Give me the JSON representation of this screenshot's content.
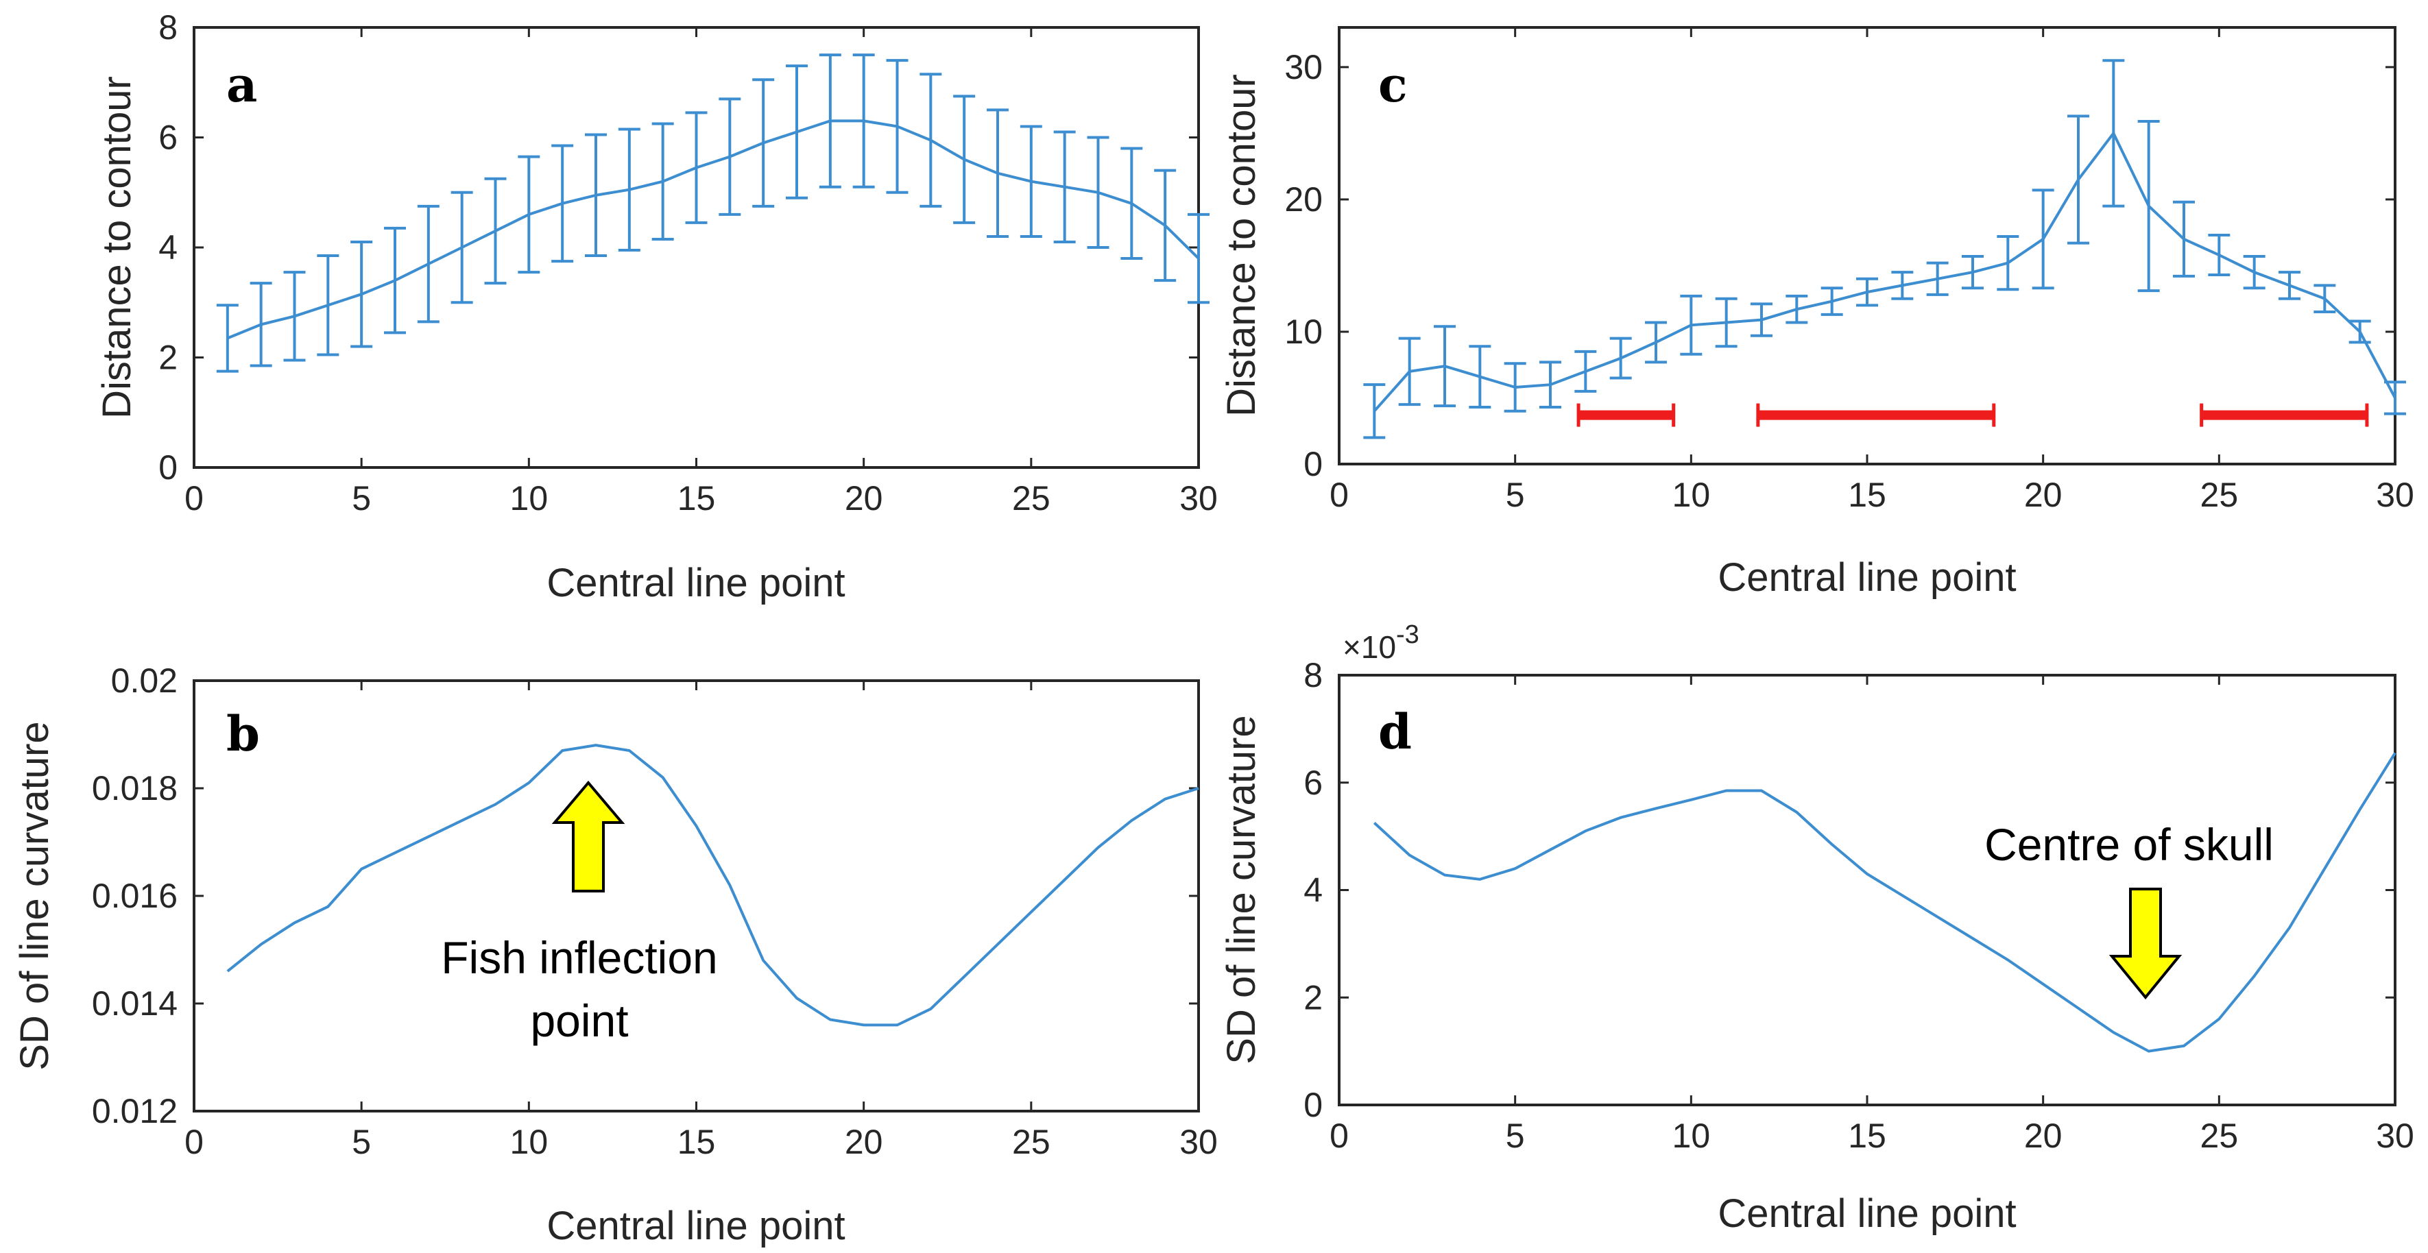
{
  "chart_data": [
    {
      "id": "a",
      "type": "line",
      "panel_label": "a",
      "xlabel": "Central line point",
      "ylabel": "Distance to contour",
      "xlim": [
        0,
        30
      ],
      "ylim": [
        0,
        8
      ],
      "xticks": [
        "0",
        "5",
        "10",
        "15",
        "20",
        "25",
        "30"
      ],
      "yticks": [
        "0",
        "2",
        "4",
        "6",
        "8"
      ],
      "x": [
        1,
        2,
        3,
        4,
        5,
        6,
        7,
        8,
        9,
        10,
        11,
        12,
        13,
        14,
        15,
        16,
        17,
        18,
        19,
        20,
        21,
        22,
        23,
        24,
        25,
        26,
        27,
        28,
        29,
        30
      ],
      "values": [
        2.35,
        2.6,
        2.75,
        2.95,
        3.15,
        3.4,
        3.7,
        4.0,
        4.3,
        4.6,
        4.8,
        4.95,
        5.05,
        5.2,
        5.45,
        5.65,
        5.9,
        6.1,
        6.3,
        6.3,
        6.2,
        5.95,
        5.6,
        5.35,
        5.2,
        5.1,
        5.0,
        4.8,
        4.4,
        3.8
      ],
      "error": [
        0.6,
        0.75,
        0.8,
        0.9,
        0.95,
        0.95,
        1.05,
        1.0,
        0.95,
        1.05,
        1.05,
        1.1,
        1.1,
        1.05,
        1.0,
        1.05,
        1.15,
        1.2,
        1.2,
        1.2,
        1.2,
        1.2,
        1.15,
        1.15,
        1.0,
        1.0,
        1.0,
        1.0,
        1.0,
        0.8
      ]
    },
    {
      "id": "b",
      "type": "line",
      "panel_label": "b",
      "xlabel": "Central line point",
      "ylabel": "SD of line curvature",
      "xlim": [
        0,
        30
      ],
      "ylim": [
        0.012,
        0.02
      ],
      "xticks": [
        "0",
        "5",
        "10",
        "15",
        "20",
        "25",
        "30"
      ],
      "yticks": [
        "0.012",
        "0.014",
        "0.016",
        "0.018",
        "0.02"
      ],
      "x": [
        1,
        2,
        3,
        4,
        5,
        6,
        7,
        8,
        9,
        10,
        11,
        12,
        13,
        14,
        15,
        16,
        17,
        18,
        19,
        20,
        21,
        22,
        23,
        24,
        25,
        26,
        27,
        28,
        29,
        30
      ],
      "values": [
        0.0146,
        0.0151,
        0.0155,
        0.0158,
        0.0165,
        0.0168,
        0.0171,
        0.0174,
        0.0177,
        0.0181,
        0.0187,
        0.0188,
        0.0187,
        0.0182,
        0.0173,
        0.0162,
        0.0148,
        0.0141,
        0.0137,
        0.0136,
        0.0136,
        0.0139,
        0.0145,
        0.0151,
        0.0157,
        0.0163,
        0.0169,
        0.0174,
        0.0178,
        0.018
      ],
      "annotation": {
        "text_line1": "Fish inflection",
        "text_line2": "point",
        "arrow_x": 12,
        "arrow_direction": "up"
      }
    },
    {
      "id": "c",
      "type": "line",
      "panel_label": "c",
      "xlabel": "Central line point",
      "ylabel": "Distance to contour",
      "xlim": [
        0,
        30
      ],
      "ylim": [
        0,
        33
      ],
      "xticks": [
        "0",
        "5",
        "10",
        "15",
        "20",
        "25",
        "30"
      ],
      "yticks": [
        "0",
        "10",
        "20",
        "30"
      ],
      "x": [
        1,
        2,
        3,
        4,
        5,
        6,
        7,
        8,
        9,
        10,
        11,
        12,
        13,
        14,
        15,
        16,
        17,
        18,
        19,
        20,
        21,
        22,
        23,
        24,
        25,
        26,
        27,
        28,
        29,
        30
      ],
      "values": [
        4.0,
        7.0,
        7.4,
        6.6,
        5.8,
        6.0,
        7.0,
        8.0,
        9.2,
        10.5,
        10.7,
        10.9,
        11.7,
        12.3,
        13.0,
        13.5,
        14.0,
        14.5,
        15.2,
        17.0,
        21.5,
        25.0,
        19.5,
        17.0,
        15.8,
        14.5,
        13.5,
        12.5,
        10.0,
        5.0
      ],
      "error": [
        2.0,
        2.5,
        3.0,
        2.3,
        1.8,
        1.7,
        1.5,
        1.5,
        1.5,
        2.2,
        1.8,
        1.2,
        1.0,
        1.0,
        1.0,
        1.0,
        1.2,
        1.2,
        2.0,
        3.7,
        4.8,
        5.5,
        6.4,
        2.8,
        1.5,
        1.2,
        1.0,
        1.0,
        0.8,
        1.2
      ],
      "highlight_ranges": [
        [
          6.8,
          9.5
        ],
        [
          11.9,
          18.6
        ],
        [
          24.5,
          29.2
        ]
      ],
      "highlight_y": 3.7,
      "highlight_color": "#ee1c1c"
    },
    {
      "id": "d",
      "type": "line",
      "panel_label": "d",
      "xlabel": "Central line point",
      "ylabel": "SD of line curvature",
      "exponent_label": "×10",
      "exponent_power": "-3",
      "xlim": [
        0,
        30
      ],
      "ylim": [
        0,
        8
      ],
      "xticks": [
        "0",
        "5",
        "10",
        "15",
        "20",
        "25",
        "30"
      ],
      "yticks": [
        "0",
        "2",
        "4",
        "6",
        "8"
      ],
      "x": [
        1,
        2,
        3,
        4,
        5,
        6,
        7,
        8,
        9,
        10,
        11,
        12,
        13,
        14,
        15,
        16,
        17,
        18,
        19,
        20,
        21,
        22,
        23,
        24,
        25,
        26,
        27,
        28,
        29,
        30
      ],
      "values": [
        5.25,
        4.65,
        4.28,
        4.2,
        4.4,
        4.75,
        5.1,
        5.35,
        5.52,
        5.68,
        5.85,
        5.85,
        5.45,
        4.85,
        4.3,
        3.9,
        3.5,
        3.1,
        2.7,
        2.25,
        1.8,
        1.35,
        1.0,
        1.1,
        1.6,
        2.4,
        3.3,
        4.4,
        5.5,
        6.55
      ],
      "annotation": {
        "text": "Centre of skull",
        "arrow_x": 23,
        "arrow_direction": "down"
      }
    }
  ],
  "colors": {
    "series": "#3d8ed0",
    "axes": "#262626",
    "highlight": "#ee1c1c",
    "arrow_fill": "#ffff00",
    "arrow_stroke": "#000000"
  }
}
